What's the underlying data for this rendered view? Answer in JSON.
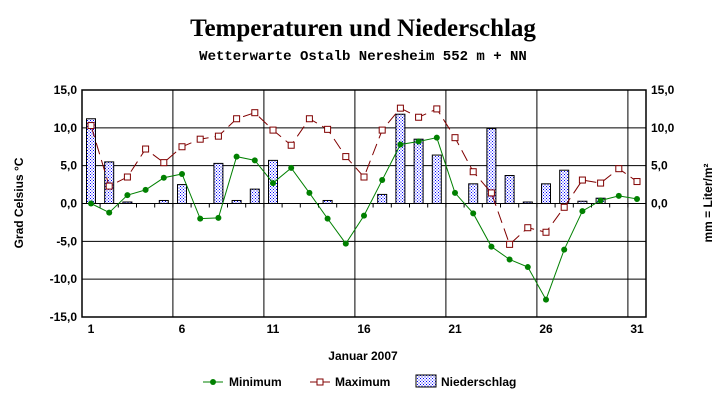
{
  "chart_data": {
    "type": "bar+line",
    "title": "Temperaturen und Niederschlag",
    "subtitle": "Wetterwarte Ostalb Neresheim 552 m + NN",
    "xlabel": "Januar 2007",
    "ylabel_left": "Grad Celsius °C",
    "ylabel_right": "mm = Liter/m²",
    "xlim": [
      1,
      31
    ],
    "ylim": [
      -15,
      15
    ],
    "x_ticks": [
      "1",
      "6",
      "11",
      "16",
      "21",
      "26",
      "31"
    ],
    "x_tick_values": [
      1,
      6,
      11,
      16,
      21,
      26,
      31
    ],
    "y_ticks_left": [
      "15,0",
      "10,0",
      "5,0",
      "0,0",
      "-5,0",
      "-10,0",
      "-15,0"
    ],
    "y_tick_values_left": [
      15,
      10,
      5,
      0,
      -5,
      -10,
      -15
    ],
    "y_ticks_right": [
      "15,0",
      "10,0",
      "5,0",
      "0,0"
    ],
    "y_tick_values_right": [
      15,
      10,
      5,
      0
    ],
    "grid": true,
    "legend_position": "bottom",
    "x": [
      1,
      2,
      3,
      4,
      5,
      6,
      7,
      8,
      9,
      10,
      11,
      12,
      13,
      14,
      15,
      16,
      17,
      18,
      19,
      20,
      21,
      22,
      23,
      24,
      25,
      26,
      27,
      28,
      29,
      30,
      31
    ],
    "series": [
      {
        "name": "Minimum",
        "type": "line",
        "color": "#008000",
        "values": [
          0,
          -1.2,
          1.1,
          1.8,
          3.4,
          3.9,
          -2.0,
          -1.9,
          6.2,
          5.7,
          2.7,
          4.7,
          1.4,
          -2.0,
          -5.3,
          -1.6,
          3.1,
          7.8,
          8.2,
          8.7,
          1.4,
          -1.3,
          -5.7,
          -7.4,
          -8.4,
          -12.7,
          -6.1,
          -1.0,
          0.4,
          1.0,
          0.6
        ]
      },
      {
        "name": "Maximum",
        "type": "line",
        "color": "#800000",
        "values": [
          10.3,
          2.3,
          3.5,
          7.2,
          5.4,
          7.5,
          8.5,
          8.9,
          11.2,
          12.0,
          9.7,
          7.7,
          11.2,
          9.8,
          6.2,
          3.5,
          9.7,
          12.6,
          11.4,
          12.5,
          8.7,
          4.2,
          1.4,
          -5.4,
          -3.2,
          -3.8,
          -0.5,
          3.1,
          2.7,
          4.6,
          2.9
        ]
      },
      {
        "name": "Niederschlag",
        "type": "bar",
        "color": "#0000ff",
        "values": [
          11.2,
          5.5,
          0.2,
          0,
          0.4,
          2.5,
          0,
          5.3,
          0.4,
          1.9,
          5.7,
          0,
          0,
          0.4,
          0,
          0,
          1.2,
          11.8,
          8.5,
          6.4,
          0,
          2.6,
          9.9,
          3.7,
          0.2,
          2.6,
          4.4,
          0.3,
          0.7,
          0,
          0
        ]
      }
    ]
  }
}
